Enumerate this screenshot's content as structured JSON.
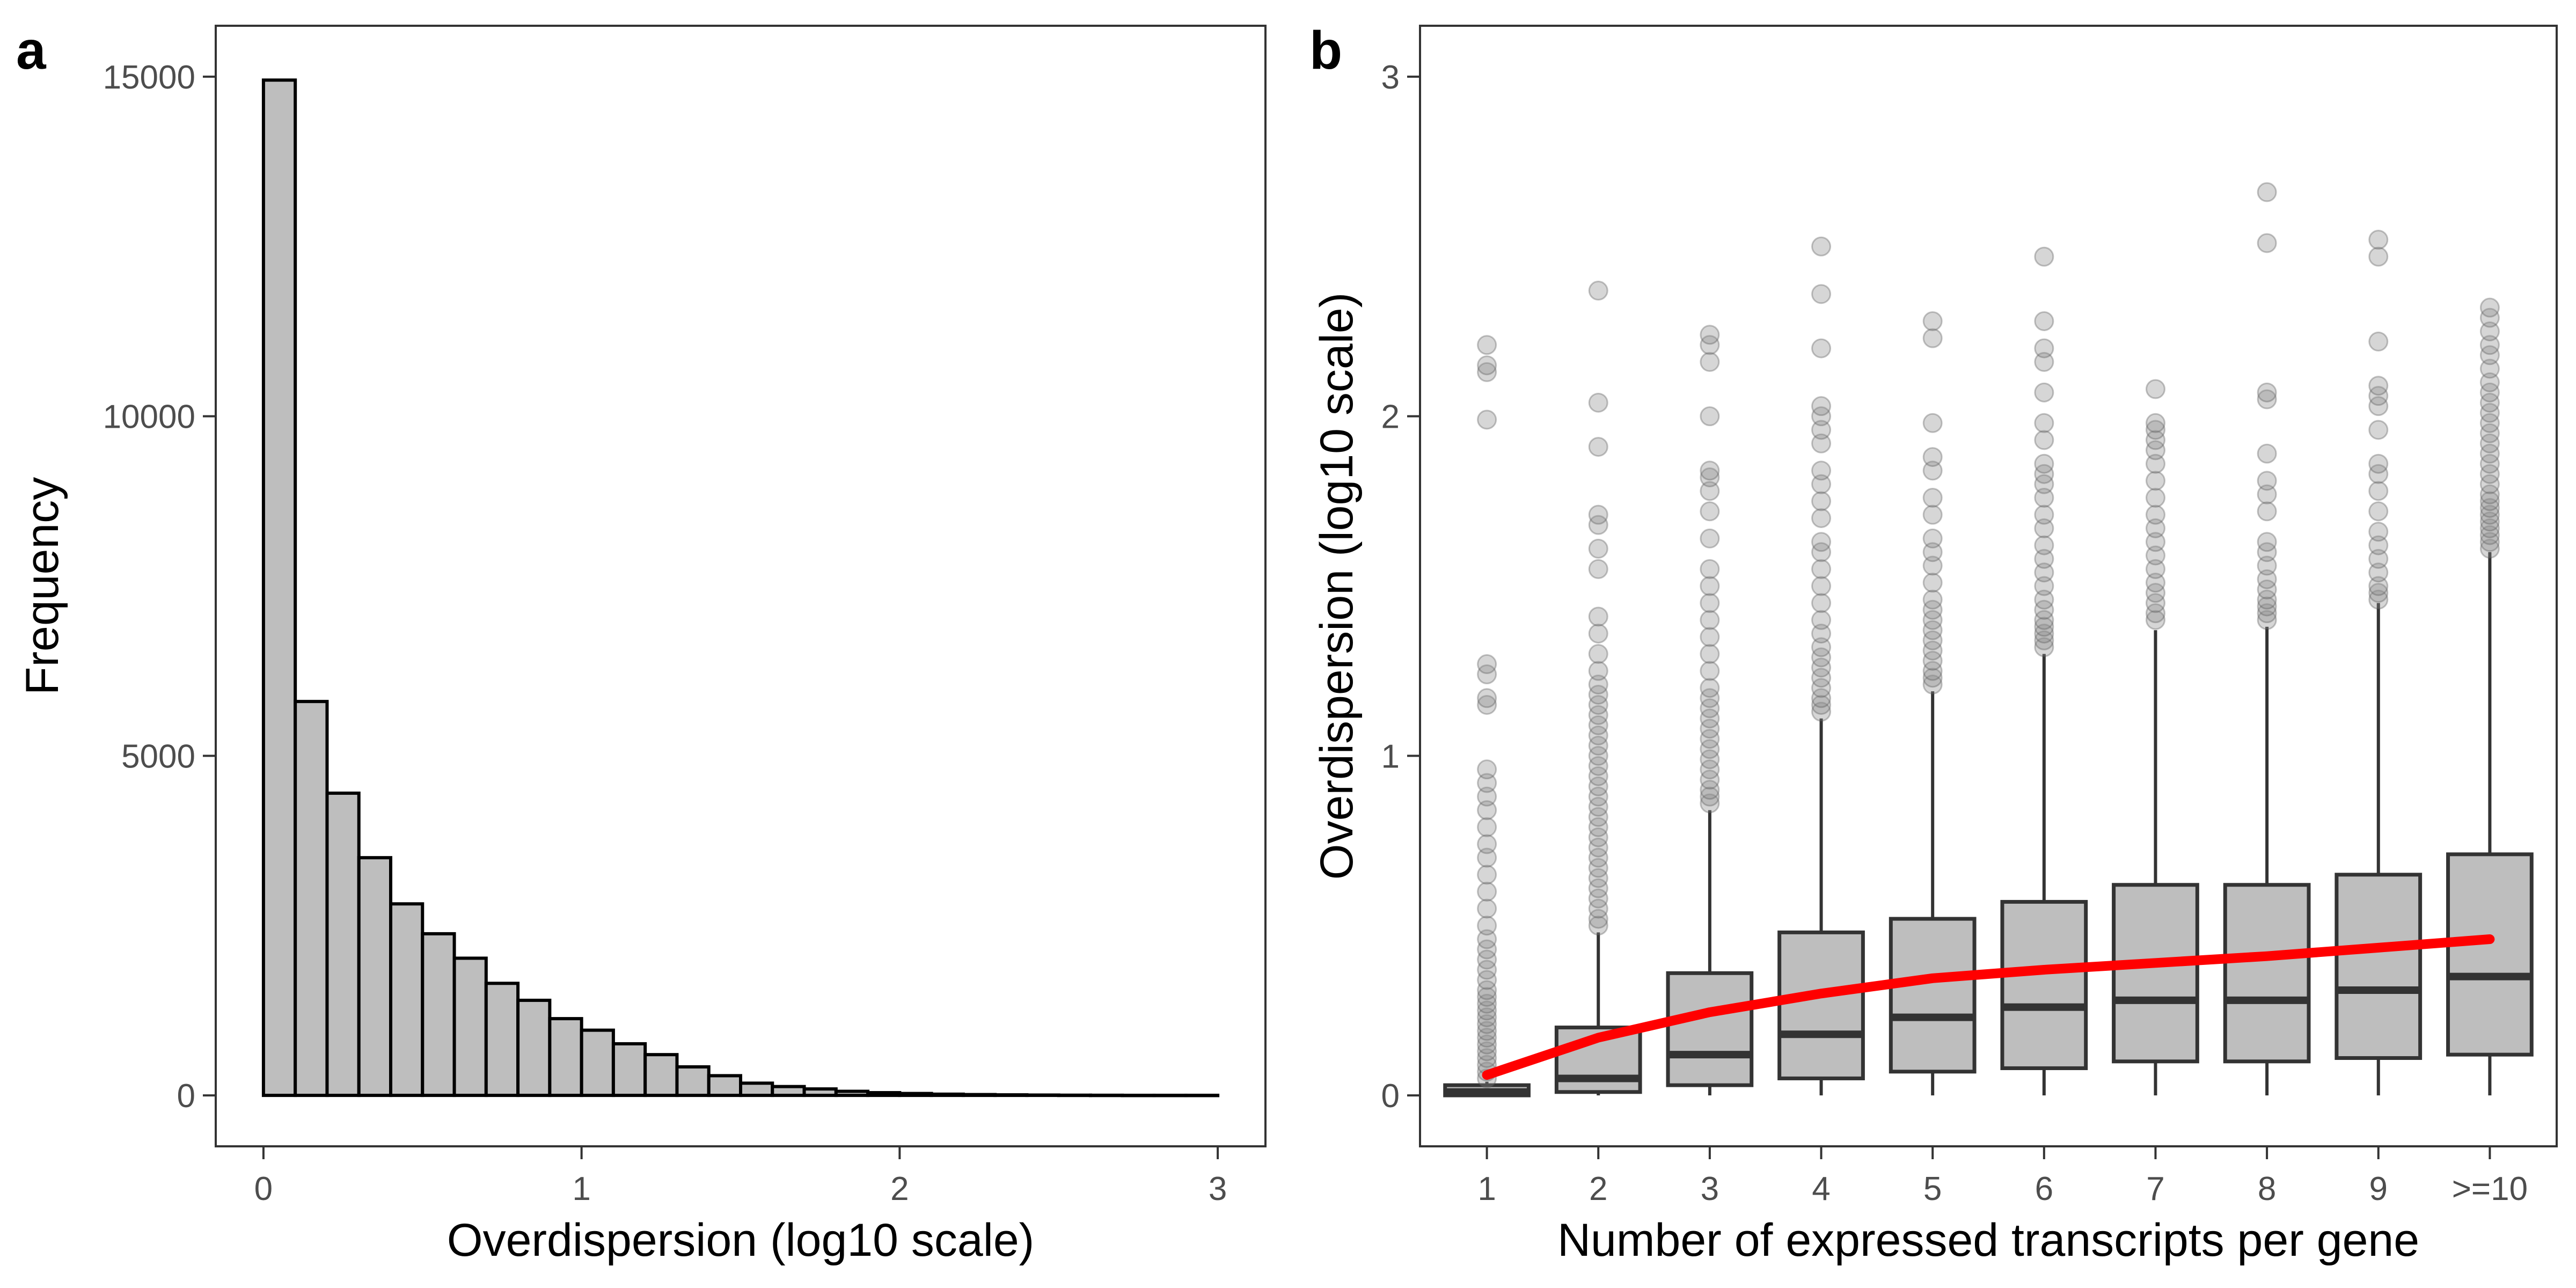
{
  "chart_data": [
    {
      "panel": "a",
      "type": "bar",
      "subtype": "histogram",
      "xlabel": "Overdispersion (log10 scale)",
      "ylabel": "Frequency",
      "xlim": [
        -0.15,
        3.15
      ],
      "ylim": [
        -750,
        15750
      ],
      "xticks": [
        0,
        1,
        2,
        3
      ],
      "yticks": [
        0,
        5000,
        10000,
        15000
      ],
      "grid": false,
      "bin_width": 0.1,
      "bin_start": 0,
      "values": [
        14950,
        5800,
        4450,
        3500,
        2820,
        2380,
        2020,
        1650,
        1400,
        1130,
        960,
        760,
        600,
        420,
        290,
        180,
        130,
        95,
        60,
        40,
        28,
        18,
        12,
        8,
        5,
        3,
        2,
        1,
        1,
        1
      ]
    },
    {
      "panel": "b",
      "type": "box",
      "xlabel": "Number of expressed transcripts per gene",
      "ylabel": "Overdispersion (log10 scale)",
      "categories": [
        "1",
        "2",
        "3",
        "4",
        "5",
        "6",
        "7",
        "8",
        "9",
        ">=10"
      ],
      "ylim": [
        -0.15,
        3.15
      ],
      "yticks": [
        0,
        1,
        2,
        3
      ],
      "grid": false,
      "boxes": [
        {
          "min": 0.0,
          "q1": 0.0,
          "median": 0.01,
          "q3": 0.03,
          "max": 0.04
        },
        {
          "min": 0.0,
          "q1": 0.01,
          "median": 0.05,
          "q3": 0.2,
          "max": 0.48
        },
        {
          "min": 0.0,
          "q1": 0.03,
          "median": 0.12,
          "q3": 0.36,
          "max": 0.84
        },
        {
          "min": 0.0,
          "q1": 0.05,
          "median": 0.18,
          "q3": 0.48,
          "max": 1.11
        },
        {
          "min": 0.0,
          "q1": 0.07,
          "median": 0.23,
          "q3": 0.52,
          "max": 1.19
        },
        {
          "min": 0.0,
          "q1": 0.08,
          "median": 0.26,
          "q3": 0.57,
          "max": 1.3
        },
        {
          "min": 0.0,
          "q1": 0.1,
          "median": 0.28,
          "q3": 0.62,
          "max": 1.37
        },
        {
          "min": 0.0,
          "q1": 0.1,
          "median": 0.28,
          "q3": 0.62,
          "max": 1.38
        },
        {
          "min": 0.0,
          "q1": 0.11,
          "median": 0.31,
          "q3": 0.65,
          "max": 1.45
        },
        {
          "min": 0.0,
          "q1": 0.12,
          "median": 0.35,
          "q3": 0.71,
          "max": 1.6
        }
      ],
      "outliers": [
        [
          0.05,
          0.07,
          0.09,
          0.11,
          0.13,
          0.15,
          0.17,
          0.19,
          0.21,
          0.23,
          0.25,
          0.27,
          0.29,
          0.31,
          0.34,
          0.37,
          0.4,
          0.43,
          0.46,
          0.5,
          0.55,
          0.6,
          0.65,
          0.7,
          0.74,
          0.79,
          0.84,
          0.88,
          0.92,
          0.96,
          1.15,
          1.17,
          1.24,
          1.27,
          1.99,
          2.13,
          2.15,
          2.21
        ],
        [
          0.5,
          0.52,
          0.55,
          0.58,
          0.61,
          0.64,
          0.67,
          0.7,
          0.73,
          0.76,
          0.79,
          0.82,
          0.85,
          0.88,
          0.91,
          0.94,
          0.97,
          1.0,
          1.03,
          1.06,
          1.09,
          1.12,
          1.15,
          1.18,
          1.21,
          1.25,
          1.3,
          1.36,
          1.41,
          1.55,
          1.61,
          1.68,
          1.71,
          1.91,
          2.04,
          2.37
        ],
        [
          0.86,
          0.88,
          0.9,
          0.93,
          0.96,
          0.99,
          1.02,
          1.05,
          1.08,
          1.11,
          1.14,
          1.17,
          1.2,
          1.25,
          1.3,
          1.35,
          1.4,
          1.45,
          1.5,
          1.55,
          1.64,
          1.72,
          1.78,
          1.82,
          1.84,
          2.0,
          2.16,
          2.21,
          2.24
        ],
        [
          1.13,
          1.15,
          1.17,
          1.2,
          1.23,
          1.26,
          1.29,
          1.32,
          1.36,
          1.4,
          1.45,
          1.5,
          1.55,
          1.6,
          1.63,
          1.7,
          1.75,
          1.8,
          1.84,
          1.92,
          1.96,
          2.0,
          2.03,
          2.2,
          2.36,
          2.5
        ],
        [
          1.21,
          1.23,
          1.25,
          1.28,
          1.31,
          1.34,
          1.37,
          1.4,
          1.43,
          1.46,
          1.51,
          1.56,
          1.6,
          1.64,
          1.71,
          1.76,
          1.84,
          1.88,
          1.98,
          2.23,
          2.28
        ],
        [
          1.32,
          1.34,
          1.36,
          1.38,
          1.4,
          1.43,
          1.46,
          1.5,
          1.54,
          1.58,
          1.62,
          1.67,
          1.71,
          1.76,
          1.8,
          1.83,
          1.86,
          1.93,
          1.98,
          2.07,
          2.16,
          2.2,
          2.28,
          2.47
        ],
        [
          1.4,
          1.42,
          1.45,
          1.48,
          1.51,
          1.55,
          1.59,
          1.63,
          1.67,
          1.71,
          1.76,
          1.81,
          1.86,
          1.9,
          1.93,
          1.96,
          1.98,
          2.08
        ],
        [
          1.4,
          1.42,
          1.44,
          1.46,
          1.49,
          1.52,
          1.56,
          1.6,
          1.63,
          1.72,
          1.77,
          1.81,
          1.89,
          2.05,
          2.07,
          2.51,
          2.66
        ],
        [
          1.46,
          1.48,
          1.5,
          1.54,
          1.58,
          1.62,
          1.66,
          1.72,
          1.78,
          1.83,
          1.86,
          1.96,
          2.03,
          2.06,
          2.09,
          2.22,
          2.47,
          2.52
        ],
        [
          1.61,
          1.63,
          1.65,
          1.67,
          1.69,
          1.71,
          1.73,
          1.75,
          1.77,
          1.8,
          1.83,
          1.86,
          1.89,
          1.92,
          1.95,
          1.98,
          2.01,
          2.04,
          2.07,
          2.1,
          2.14,
          2.18,
          2.21,
          2.25,
          2.29,
          2.32
        ]
      ],
      "trend_line": {
        "color": "#ff0000",
        "x": [
          1,
          2,
          3,
          4,
          5,
          6,
          7,
          8,
          9,
          10
        ],
        "y": [
          0.06,
          0.17,
          0.245,
          0.3,
          0.345,
          0.37,
          0.39,
          0.41,
          0.435,
          0.46
        ]
      }
    }
  ]
}
